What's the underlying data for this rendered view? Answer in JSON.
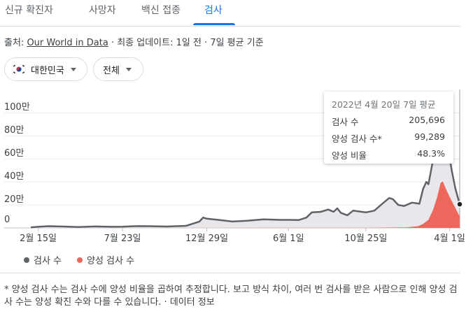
{
  "tabs": [
    {
      "label": "신규 확진자",
      "active": false
    },
    {
      "label": "사망자",
      "active": false
    },
    {
      "label": "백신 접종",
      "active": false
    },
    {
      "label": "검사",
      "active": true
    }
  ],
  "source": {
    "prefix": "출처: ",
    "link": "Our World in Data",
    "suffix": " · 최종 업데이트: 1일 전 · 7일 평균 기준"
  },
  "filters": {
    "country": "대한민국",
    "range": "전체"
  },
  "tooltip": {
    "title": "2022년 4월 20일 7일 평균",
    "rows": [
      {
        "label": "검사 수",
        "value": "205,696"
      },
      {
        "label": "양성 검사 수*",
        "value": "99,289"
      },
      {
        "label": "양성 비율",
        "value": "48.3%"
      }
    ]
  },
  "legend": [
    {
      "label": "검사 수",
      "color": "#5f6368"
    },
    {
      "label": "양성 검사 수",
      "color": "#ee675c"
    }
  ],
  "footnote": "* 양성 검사 수는 검사 수에 양성 비율을 곱하여 추정합니다. 보고 방식 차이, 여러 번 검사를 받은 사람으로 인해 양성 검사 수는 양성 확진 수와 다를 수 있습니다. · 데이터 정보",
  "chart_data": {
    "type": "area",
    "ylim": [
      0,
      1100000
    ],
    "ytick_labels": [
      "0",
      "20만",
      "40만",
      "60만",
      "80만",
      "100만"
    ],
    "ytick_values": [
      0,
      200000,
      400000,
      600000,
      800000,
      1000000
    ],
    "xtick_labels": [
      "2월 15일",
      "7월 23일",
      "12월 29일",
      "6월 1일",
      "10월 25일",
      "4월 1일"
    ],
    "xtick_dates": [
      "2020-02-15",
      "2020-07-23",
      "2020-12-29",
      "2021-06-01",
      "2021-10-25",
      "2022-04-01"
    ],
    "xlim": [
      "2020-02-01",
      "2022-04-20"
    ],
    "series": [
      {
        "name": "검사 수",
        "color": "#5f6368",
        "fill": "#e8e8ec",
        "points": [
          [
            "2020-02-01",
            5000
          ],
          [
            "2020-02-15",
            10000
          ],
          [
            "2020-03-05",
            15000
          ],
          [
            "2020-04-01",
            12000
          ],
          [
            "2020-05-01",
            8000
          ],
          [
            "2020-06-01",
            13000
          ],
          [
            "2020-07-01",
            10000
          ],
          [
            "2020-07-23",
            11000
          ],
          [
            "2020-08-20",
            16000
          ],
          [
            "2020-09-10",
            15000
          ],
          [
            "2020-10-15",
            12000
          ],
          [
            "2020-11-20",
            18000
          ],
          [
            "2020-12-15",
            55000
          ],
          [
            "2020-12-22",
            90000
          ],
          [
            "2020-12-29",
            80000
          ],
          [
            "2021-01-20",
            70000
          ],
          [
            "2021-02-15",
            55000
          ],
          [
            "2021-03-15",
            62000
          ],
          [
            "2021-04-15",
            75000
          ],
          [
            "2021-05-15",
            70000
          ],
          [
            "2021-06-01",
            70000
          ],
          [
            "2021-06-20",
            68000
          ],
          [
            "2021-07-05",
            90000
          ],
          [
            "2021-07-15",
            135000
          ],
          [
            "2021-08-01",
            140000
          ],
          [
            "2021-08-15",
            160000
          ],
          [
            "2021-08-25",
            140000
          ],
          [
            "2021-09-01",
            170000
          ],
          [
            "2021-09-08",
            130000
          ],
          [
            "2021-09-20",
            110000
          ],
          [
            "2021-10-01",
            150000
          ],
          [
            "2021-10-25",
            135000
          ],
          [
            "2021-11-10",
            150000
          ],
          [
            "2021-11-25",
            210000
          ],
          [
            "2021-12-08",
            260000
          ],
          [
            "2021-12-15",
            250000
          ],
          [
            "2021-12-25",
            200000
          ],
          [
            "2022-01-05",
            190000
          ],
          [
            "2022-01-20",
            220000
          ],
          [
            "2022-02-03",
            210000
          ],
          [
            "2022-02-10",
            340000
          ],
          [
            "2022-02-16",
            400000
          ],
          [
            "2022-02-20",
            380000
          ],
          [
            "2022-02-25",
            500000
          ],
          [
            "2022-03-01",
            600000
          ],
          [
            "2022-03-08",
            700000
          ],
          [
            "2022-03-16",
            900000
          ],
          [
            "2022-03-22",
            820000
          ],
          [
            "2022-03-28",
            720000
          ],
          [
            "2022-04-05",
            500000
          ],
          [
            "2022-04-12",
            340000
          ],
          [
            "2022-04-20",
            205696
          ]
        ]
      },
      {
        "name": "양성 검사 수",
        "color": "#ee675c",
        "points": [
          [
            "2020-02-01",
            0
          ],
          [
            "2021-11-01",
            2000
          ],
          [
            "2022-01-10",
            4000
          ],
          [
            "2022-02-01",
            15000
          ],
          [
            "2022-02-10",
            35000
          ],
          [
            "2022-02-20",
            70000
          ],
          [
            "2022-03-01",
            160000
          ],
          [
            "2022-03-08",
            260000
          ],
          [
            "2022-03-15",
            390000
          ],
          [
            "2022-03-19",
            405000
          ],
          [
            "2022-03-25",
            340000
          ],
          [
            "2022-04-01",
            270000
          ],
          [
            "2022-04-10",
            190000
          ],
          [
            "2022-04-20",
            99289
          ]
        ]
      }
    ]
  }
}
